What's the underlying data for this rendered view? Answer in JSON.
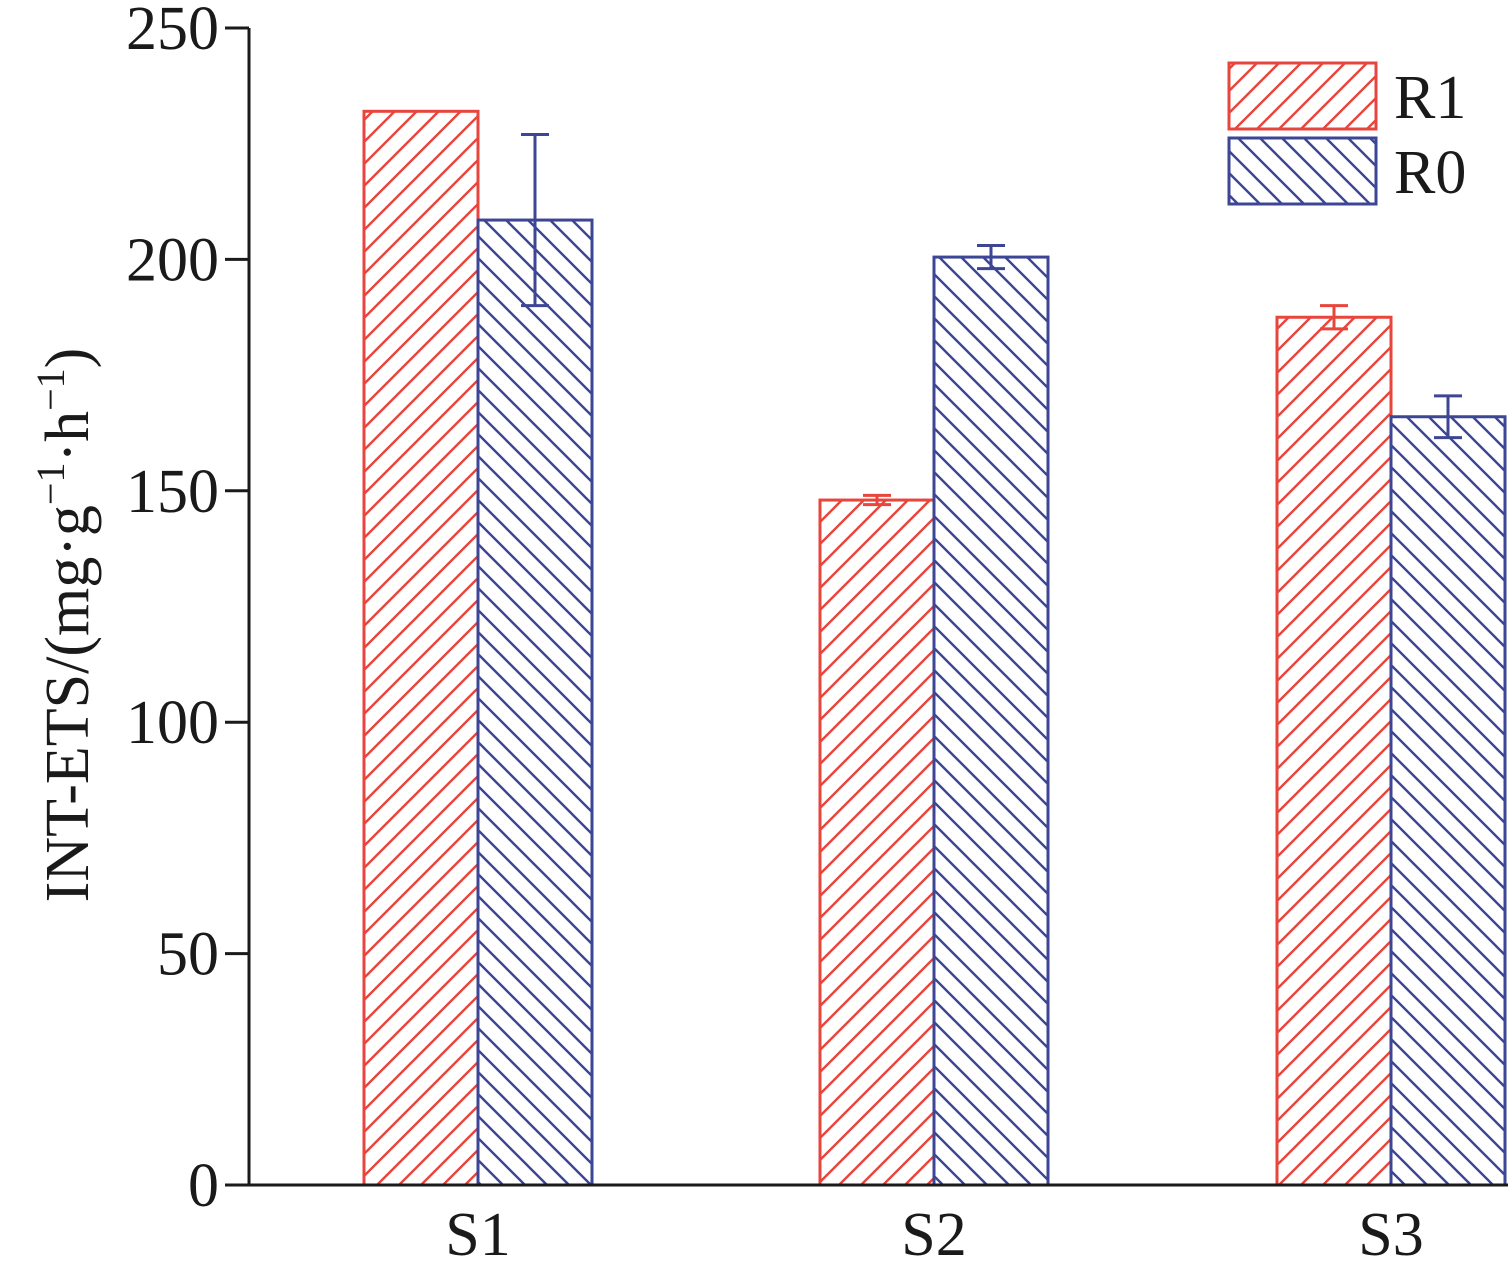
{
  "chart_data": {
    "type": "bar",
    "categories": [
      "S1",
      "S2",
      "S3"
    ],
    "series": [
      {
        "name": "R1",
        "values": [
          232,
          148,
          187.5
        ],
        "errors": [
          0,
          1,
          2.5
        ],
        "color": "#e8453c",
        "pattern": "forward-hatch"
      },
      {
        "name": "R0",
        "values": [
          208.5,
          200.5,
          166
        ],
        "errors": [
          18.5,
          2.5,
          4.5
        ],
        "color": "#3d4595",
        "pattern": "backward-hatch"
      }
    ],
    "ylabel": {
      "main": "INT-ETS/(mg·g",
      "sup1": "−1",
      "mid": "·h",
      "sup2": "−1",
      "end": ")"
    },
    "ylim": [
      0,
      250
    ],
    "yticks": [
      "0",
      "50",
      "100",
      "150",
      "200",
      "250"
    ],
    "ytick_values": [
      0,
      50,
      100,
      150,
      200,
      250
    ],
    "grid": false,
    "legend_position": "top-right"
  }
}
